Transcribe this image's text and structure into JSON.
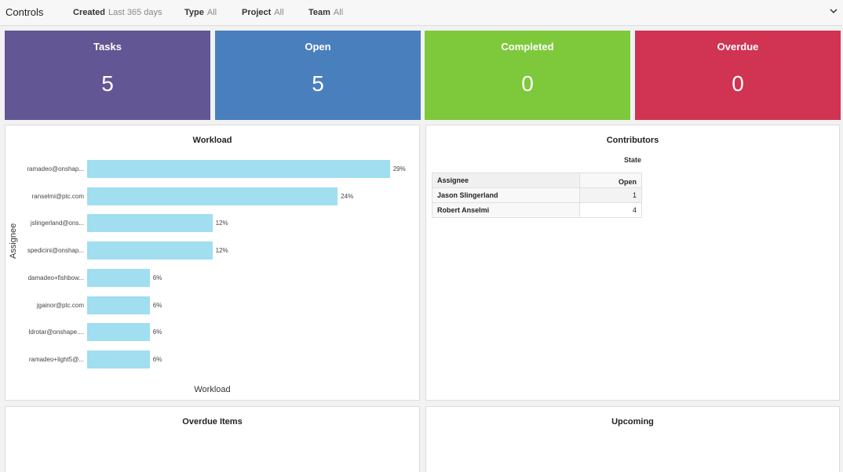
{
  "header": {
    "title": "Controls",
    "filters": [
      {
        "label": "Created",
        "value": "Last 365 days"
      },
      {
        "label": "Type",
        "value": "All"
      },
      {
        "label": "Project",
        "value": "All"
      },
      {
        "label": "Team",
        "value": "All"
      }
    ]
  },
  "kpis": [
    {
      "label": "Tasks",
      "value": "5",
      "color": "#625694"
    },
    {
      "label": "Open",
      "value": "5",
      "color": "#4a7fbe"
    },
    {
      "label": "Completed",
      "value": "0",
      "color": "#7ec93b"
    },
    {
      "label": "Overdue",
      "value": "0",
      "color": "#d13352"
    }
  ],
  "workload": {
    "title": "Workload",
    "chart_data": {
      "type": "bar",
      "orientation": "horizontal",
      "xlabel": "Workload",
      "ylabel": "Assignee",
      "categories": [
        "ramadeo@onshap...",
        "ranselmi@ptc.com",
        "jslingerland@ons...",
        "spedicini@onshap...",
        "damadeo+fishbow...",
        "jgainor@ptc.com",
        "ldrotar@onshape....",
        "ramadeo+light5@..."
      ],
      "values": [
        29,
        24,
        12,
        12,
        6,
        6,
        6,
        6
      ],
      "value_labels": [
        "29%",
        "24%",
        "12%",
        "12%",
        "6%",
        "6%",
        "6%",
        "6%"
      ],
      "bar_color": "#a0def0"
    }
  },
  "contributors": {
    "title": "Contributors",
    "state_header": "State",
    "col_assignee": "Assignee",
    "col_open": "Open",
    "rows": [
      {
        "name": "Jason Slingerland",
        "open": "1"
      },
      {
        "name": "Robert Anselmi",
        "open": "4"
      }
    ]
  },
  "overdue_items": {
    "title": "Overdue Items"
  },
  "upcoming": {
    "title": "Upcoming"
  }
}
